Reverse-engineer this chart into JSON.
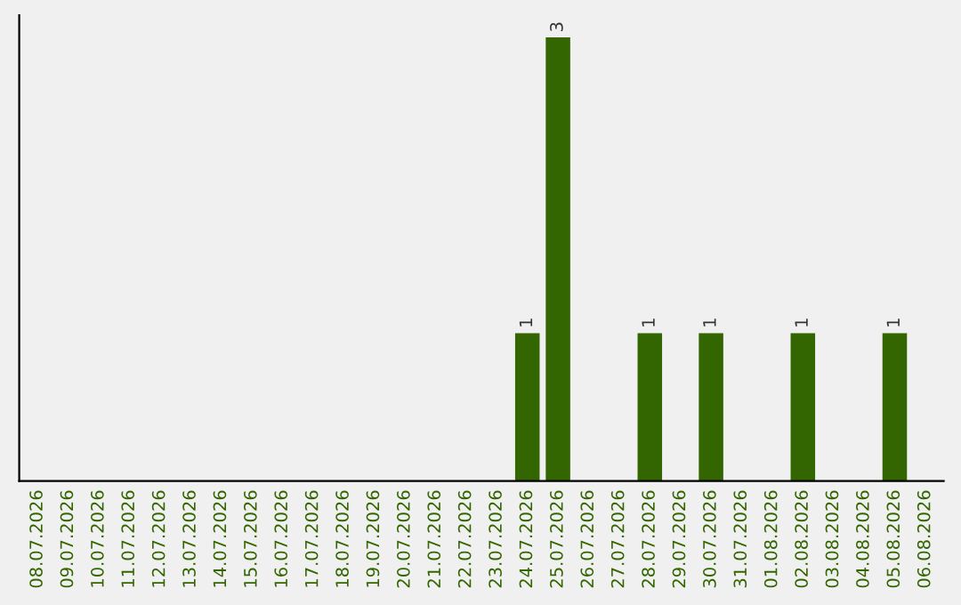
{
  "chart_data": {
    "type": "bar",
    "categories": [
      "08.07.2026",
      "09.07.2026",
      "10.07.2026",
      "11.07.2026",
      "12.07.2026",
      "13.07.2026",
      "14.07.2026",
      "15.07.2026",
      "16.07.2026",
      "17.07.2026",
      "18.07.2026",
      "19.07.2026",
      "20.07.2026",
      "21.07.2026",
      "22.07.2026",
      "23.07.2026",
      "24.07.2026",
      "25.07.2026",
      "26.07.2026",
      "27.07.2026",
      "28.07.2026",
      "29.07.2026",
      "30.07.2026",
      "31.07.2026",
      "01.08.2026",
      "02.08.2026",
      "03.08.2026",
      "04.08.2026",
      "05.08.2026",
      "06.08.2026"
    ],
    "values": [
      null,
      null,
      null,
      null,
      null,
      null,
      null,
      null,
      null,
      null,
      null,
      null,
      null,
      null,
      null,
      null,
      1,
      3,
      null,
      null,
      1,
      null,
      1,
      null,
      null,
      1,
      null,
      null,
      1,
      null
    ],
    "data_labels": true,
    "color": "#336600",
    "tick_labels": "x",
    "grid": false,
    "legend": false
  }
}
